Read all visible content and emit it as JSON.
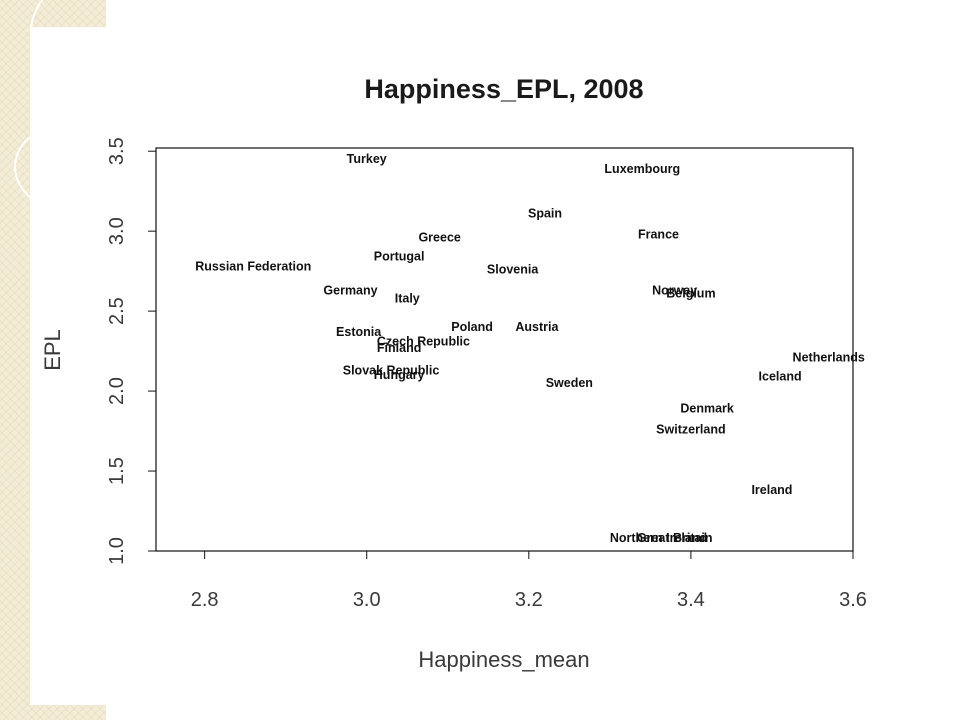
{
  "chart_data": {
    "type": "scatter",
    "title": "Happiness_EPL, 2008",
    "xlabel": "Happiness_mean",
    "ylabel": "EPL",
    "xlim": [
      2.74,
      3.6
    ],
    "ylim": [
      1.0,
      3.52
    ],
    "x_ticks": [
      "2.8",
      "3.0",
      "3.2",
      "3.4",
      "3.6"
    ],
    "y_ticks": [
      "1.0",
      "1.5",
      "2.0",
      "2.5",
      "3.0",
      "3.5"
    ],
    "grid": false,
    "legend": "none",
    "points": [
      {
        "label": "Turkey",
        "x": 3.0,
        "y": 3.45,
        "color": "#3a2a14"
      },
      {
        "label": "Luxembourg",
        "x": 3.34,
        "y": 3.39,
        "color": "#4a1020"
      },
      {
        "label": "Spain",
        "x": 3.22,
        "y": 3.11,
        "color": "#3a2a14"
      },
      {
        "label": "France",
        "x": 3.36,
        "y": 2.98,
        "color": "#4a1020"
      },
      {
        "label": "Greece",
        "x": 3.09,
        "y": 2.96,
        "color": "#3a2a14"
      },
      {
        "label": "Portugal",
        "x": 3.04,
        "y": 2.84,
        "color": "#4a1020"
      },
      {
        "label": "Russian Federation",
        "x": 2.86,
        "y": 2.78,
        "color": "#4a1020"
      },
      {
        "label": "Slovenia",
        "x": 3.18,
        "y": 2.76,
        "color": "#101040"
      },
      {
        "label": "Norway",
        "x": 3.38,
        "y": 2.63,
        "color": "#101040"
      },
      {
        "label": "Belgium",
        "x": 3.4,
        "y": 2.61,
        "color": "#101040"
      },
      {
        "label": "Germany",
        "x": 2.98,
        "y": 2.63,
        "color": "#3a2a14"
      },
      {
        "label": "Italy",
        "x": 3.05,
        "y": 2.58,
        "color": "#1a5a1a"
      },
      {
        "label": "Poland",
        "x": 3.13,
        "y": 2.4,
        "color": "#4a1020"
      },
      {
        "label": "Austria",
        "x": 3.21,
        "y": 2.4,
        "color": "#101040"
      },
      {
        "label": "Estonia",
        "x": 2.99,
        "y": 2.37,
        "color": "#3a2a14"
      },
      {
        "label": "Czech Republic",
        "x": 3.07,
        "y": 2.31,
        "color": "#101040"
      },
      {
        "label": "Finland",
        "x": 3.04,
        "y": 2.27,
        "color": "#4a1020"
      },
      {
        "label": "Netherlands",
        "x": 3.57,
        "y": 2.21,
        "color": "#4a1020"
      },
      {
        "label": "Slovak Republic",
        "x": 3.03,
        "y": 2.13,
        "color": "#3a2a14"
      },
      {
        "label": "Hungary",
        "x": 3.04,
        "y": 2.1,
        "color": "#4a1020"
      },
      {
        "label": "Iceland",
        "x": 3.51,
        "y": 2.09,
        "color": "#1a5a1a"
      },
      {
        "label": "Sweden",
        "x": 3.25,
        "y": 2.05,
        "color": "#101040"
      },
      {
        "label": "Denmark",
        "x": 3.42,
        "y": 1.89,
        "color": "#4a1020"
      },
      {
        "label": "Switzerland",
        "x": 3.4,
        "y": 1.76,
        "color": "#101040"
      },
      {
        "label": "Ireland",
        "x": 3.5,
        "y": 1.38,
        "color": "#1a5a1a"
      },
      {
        "label": "Northern Ireland",
        "x": 3.36,
        "y": 1.08,
        "color": "#101040"
      },
      {
        "label": "Great Britain",
        "x": 3.38,
        "y": 1.08,
        "color": "#4a1020"
      }
    ]
  }
}
